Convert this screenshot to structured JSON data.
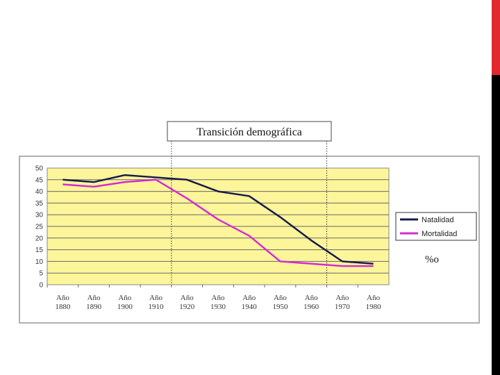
{
  "colors": {
    "accent_bar": "#e0282e",
    "plot_background": "#fdf59a",
    "natalidad": "#141d4a",
    "mortalidad": "#d62ad6"
  },
  "chart_data": {
    "type": "line",
    "title": "Transición demográfica",
    "unit": "%o",
    "x": [
      "Año 1880",
      "Año 1890",
      "Año 1900",
      "Año 1910",
      "Año 1920",
      "Año 1930",
      "Año 1940",
      "Año 1950",
      "Año 1960",
      "Año 1970",
      "Año 1980"
    ],
    "x_lines": [
      [
        "Año",
        "1880"
      ],
      [
        "Año",
        "1890"
      ],
      [
        "Año",
        "1900"
      ],
      [
        "Año",
        "1910"
      ],
      [
        "Año",
        "1920"
      ],
      [
        "Año",
        "1930"
      ],
      [
        "Año",
        "1940"
      ],
      [
        "Año",
        "1950"
      ],
      [
        "Año",
        "1960"
      ],
      [
        "Año",
        "1970"
      ],
      [
        "Año",
        "1980"
      ]
    ],
    "yticks": [
      "0",
      "5",
      "10",
      "15",
      "20",
      "25",
      "30",
      "35",
      "40",
      "45",
      "50"
    ],
    "ylim": [
      0,
      50
    ],
    "grid": true,
    "legend_position": "right",
    "phase_markers_x_index": [
      3.5,
      8.5
    ],
    "series": [
      {
        "name": "Natalidad",
        "color": "#141d4a",
        "values": [
          45,
          44,
          47,
          46,
          45,
          40,
          38,
          29,
          19,
          10,
          9
        ]
      },
      {
        "name": "Mortalidad",
        "color": "#d62ad6",
        "values": [
          43,
          42,
          44,
          45,
          37,
          28,
          21,
          10,
          9,
          8,
          8
        ]
      }
    ]
  }
}
